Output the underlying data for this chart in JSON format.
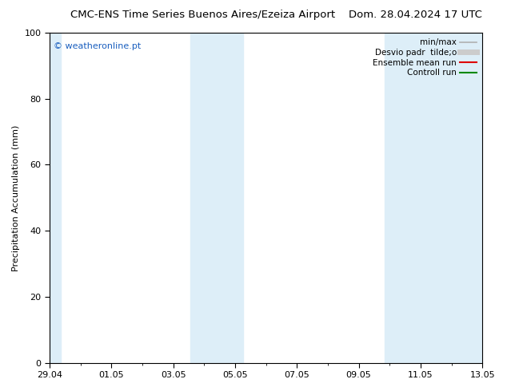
{
  "title_left": "CMC-ENS Time Series Buenos Aires/Ezeiza Airport",
  "title_right": "Dom. 28.04.2024 17 UTC",
  "ylabel": "Precipitation Accumulation (mm)",
  "ylim": [
    0,
    100
  ],
  "yticks": [
    0,
    20,
    40,
    60,
    80,
    100
  ],
  "xtick_labels": [
    "29.04",
    "01.05",
    "03.05",
    "05.05",
    "07.05",
    "09.05",
    "11.05",
    "13.05"
  ],
  "xmin": 0,
  "xmax": 14,
  "shaded_bands": [
    {
      "xmin": 0.0,
      "xmax": 0.35,
      "color": "#ddeef8"
    },
    {
      "xmin": 4.55,
      "xmax": 6.25,
      "color": "#ddeef8"
    },
    {
      "xmin": 10.85,
      "xmax": 14.0,
      "color": "#ddeef8"
    }
  ],
  "watermark": "© weatheronline.pt",
  "watermark_color": "#1a5fbf",
  "background_color": "#ffffff",
  "plot_bg_color": "#ffffff",
  "legend_entries": [
    {
      "label": "min/max",
      "color": "#b0b0b0",
      "lw": 1.2,
      "style": "line_with_tick"
    },
    {
      "label": "Desvio padr  tilde;o",
      "color": "#cccccc",
      "lw": 5,
      "style": "thick"
    },
    {
      "label": "Ensemble mean run",
      "color": "#dd0000",
      "lw": 1.5,
      "style": "line"
    },
    {
      "label": "Controll run",
      "color": "#008800",
      "lw": 1.5,
      "style": "line"
    }
  ],
  "title_fontsize": 9.5,
  "ylabel_fontsize": 8,
  "tick_fontsize": 8,
  "watermark_fontsize": 8,
  "legend_fontsize": 7.5
}
